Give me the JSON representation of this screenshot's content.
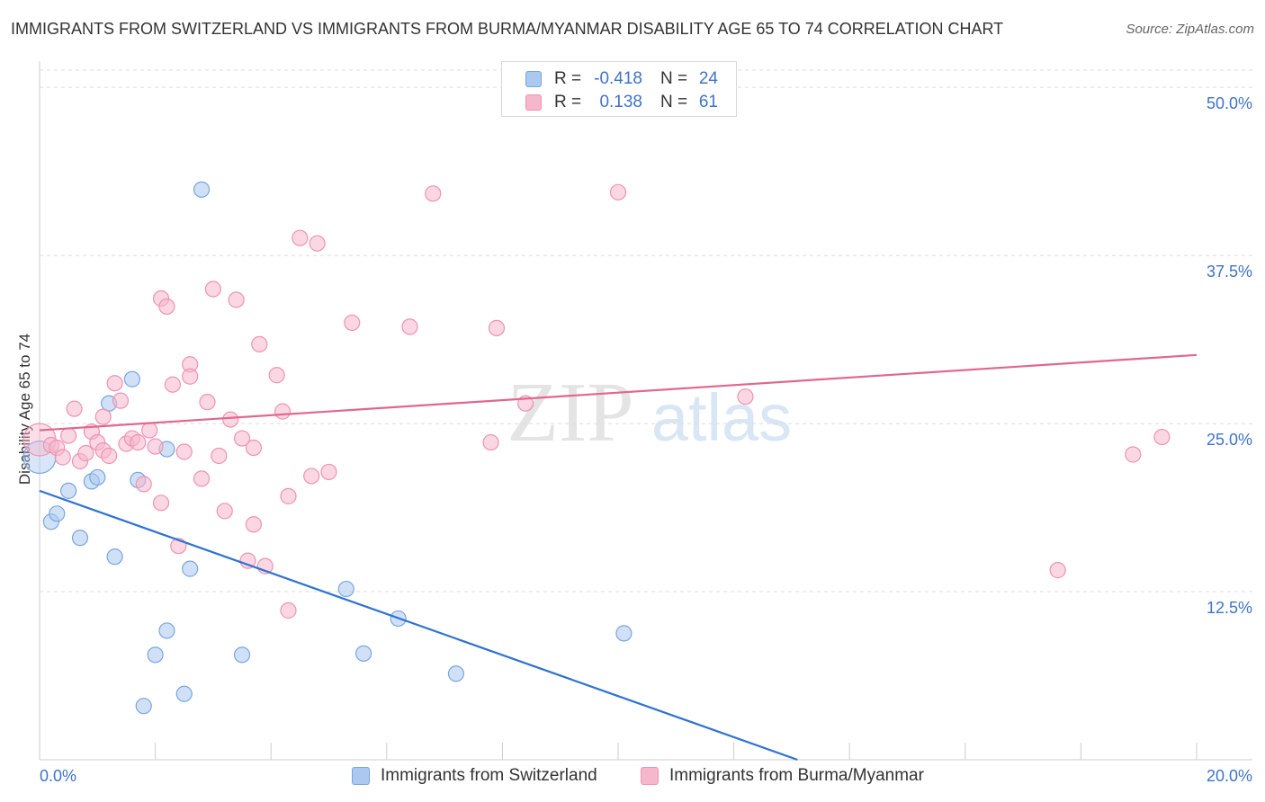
{
  "title": "IMMIGRANTS FROM SWITZERLAND VS IMMIGRANTS FROM BURMA/MYANMAR DISABILITY AGE 65 TO 74 CORRELATION CHART",
  "source": "Source: ZipAtlas.com",
  "watermark": {
    "zip": "ZIP",
    "atlas": "atlas"
  },
  "colors": {
    "blue_fill": "#aac8f0",
    "blue_stroke": "#7aa6de",
    "blue_line": "#2e72d2",
    "pink_fill": "#f6b6cb",
    "pink_stroke": "#ee93b2",
    "pink_line": "#e0678f",
    "axis_text": "#3f72c9",
    "grid": "#dcdcdc"
  },
  "legend": {
    "rows": [
      {
        "r_label": "R =",
        "r_value": "-0.418",
        "n_label": "N =",
        "n_value": "24"
      },
      {
        "r_label": "R =",
        "r_value": "0.138",
        "n_label": "N =",
        "n_value": "61"
      }
    ]
  },
  "chart_data": {
    "type": "scatter",
    "title": "IMMIGRANTS FROM SWITZERLAND VS IMMIGRANTS FROM BURMA/MYANMAR DISABILITY AGE 65 TO 74 CORRELATION CHART",
    "xlabel": "",
    "ylabel": "Disability Age 65 to 74",
    "xlim": [
      0,
      20
    ],
    "ylim": [
      0,
      50
    ],
    "x_tick_labels": [
      "0.0%",
      "20.0%"
    ],
    "y_ticks": [
      12.5,
      25.0,
      37.5,
      50.0
    ],
    "y_tick_labels": [
      "12.5%",
      "25.0%",
      "37.5%",
      "50.0%"
    ],
    "grid": true,
    "legend_position": "top-center",
    "series": [
      {
        "name": "Immigrants from Switzerland",
        "color": "#aac8f0",
        "points": [
          [
            0.0,
            22.5
          ],
          [
            0.2,
            17.7
          ],
          [
            0.3,
            18.3
          ],
          [
            0.5,
            20.0
          ],
          [
            0.7,
            16.5
          ],
          [
            0.9,
            20.7
          ],
          [
            1.0,
            21.0
          ],
          [
            1.2,
            26.5
          ],
          [
            1.3,
            15.1
          ],
          [
            1.6,
            28.3
          ],
          [
            1.7,
            20.8
          ],
          [
            1.8,
            4.0
          ],
          [
            2.0,
            7.8
          ],
          [
            2.2,
            9.6
          ],
          [
            2.2,
            23.1
          ],
          [
            2.5,
            4.9
          ],
          [
            2.6,
            14.2
          ],
          [
            2.8,
            42.4
          ],
          [
            3.5,
            7.8
          ],
          [
            5.3,
            12.7
          ],
          [
            5.6,
            7.9
          ],
          [
            6.2,
            10.5
          ],
          [
            7.2,
            6.4
          ],
          [
            10.1,
            9.4
          ]
        ],
        "trend": [
          [
            0.0,
            20.0
          ],
          [
            13.1,
            0.0
          ]
        ]
      },
      {
        "name": "Immigrants from Burma/Myanmar",
        "color": "#f6b6cb",
        "points": [
          [
            0.0,
            23.8
          ],
          [
            0.2,
            23.4
          ],
          [
            0.3,
            23.2
          ],
          [
            0.4,
            22.5
          ],
          [
            0.5,
            24.1
          ],
          [
            0.6,
            26.1
          ],
          [
            0.7,
            22.2
          ],
          [
            0.8,
            22.8
          ],
          [
            0.9,
            24.4
          ],
          [
            1.0,
            23.6
          ],
          [
            1.1,
            23.0
          ],
          [
            1.1,
            25.5
          ],
          [
            1.2,
            22.6
          ],
          [
            1.3,
            28.0
          ],
          [
            1.4,
            26.7
          ],
          [
            1.5,
            23.5
          ],
          [
            1.6,
            23.9
          ],
          [
            1.7,
            23.6
          ],
          [
            1.8,
            20.5
          ],
          [
            1.9,
            24.5
          ],
          [
            2.0,
            23.3
          ],
          [
            2.1,
            19.1
          ],
          [
            2.1,
            34.3
          ],
          [
            2.2,
            33.7
          ],
          [
            2.3,
            27.9
          ],
          [
            2.4,
            15.9
          ],
          [
            2.5,
            22.9
          ],
          [
            2.6,
            29.4
          ],
          [
            2.6,
            28.5
          ],
          [
            2.8,
            20.9
          ],
          [
            2.9,
            26.6
          ],
          [
            3.0,
            35.0
          ],
          [
            3.1,
            22.6
          ],
          [
            3.2,
            18.5
          ],
          [
            3.3,
            25.3
          ],
          [
            3.4,
            34.2
          ],
          [
            3.5,
            23.9
          ],
          [
            3.6,
            14.8
          ],
          [
            3.7,
            17.5
          ],
          [
            3.7,
            23.2
          ],
          [
            3.8,
            30.9
          ],
          [
            3.9,
            14.4
          ],
          [
            4.1,
            28.6
          ],
          [
            4.2,
            25.9
          ],
          [
            4.3,
            19.6
          ],
          [
            4.3,
            11.1
          ],
          [
            4.5,
            38.8
          ],
          [
            4.7,
            21.1
          ],
          [
            4.8,
            38.4
          ],
          [
            5.0,
            21.4
          ],
          [
            5.4,
            32.5
          ],
          [
            6.4,
            32.2
          ],
          [
            6.8,
            42.1
          ],
          [
            7.8,
            23.6
          ],
          [
            7.9,
            32.1
          ],
          [
            8.4,
            26.5
          ],
          [
            10.0,
            42.2
          ],
          [
            12.2,
            27.0
          ],
          [
            17.6,
            14.1
          ],
          [
            18.9,
            22.7
          ],
          [
            19.4,
            24.0
          ]
        ],
        "trend": [
          [
            0.0,
            24.5
          ],
          [
            20.0,
            30.1
          ]
        ]
      }
    ]
  }
}
